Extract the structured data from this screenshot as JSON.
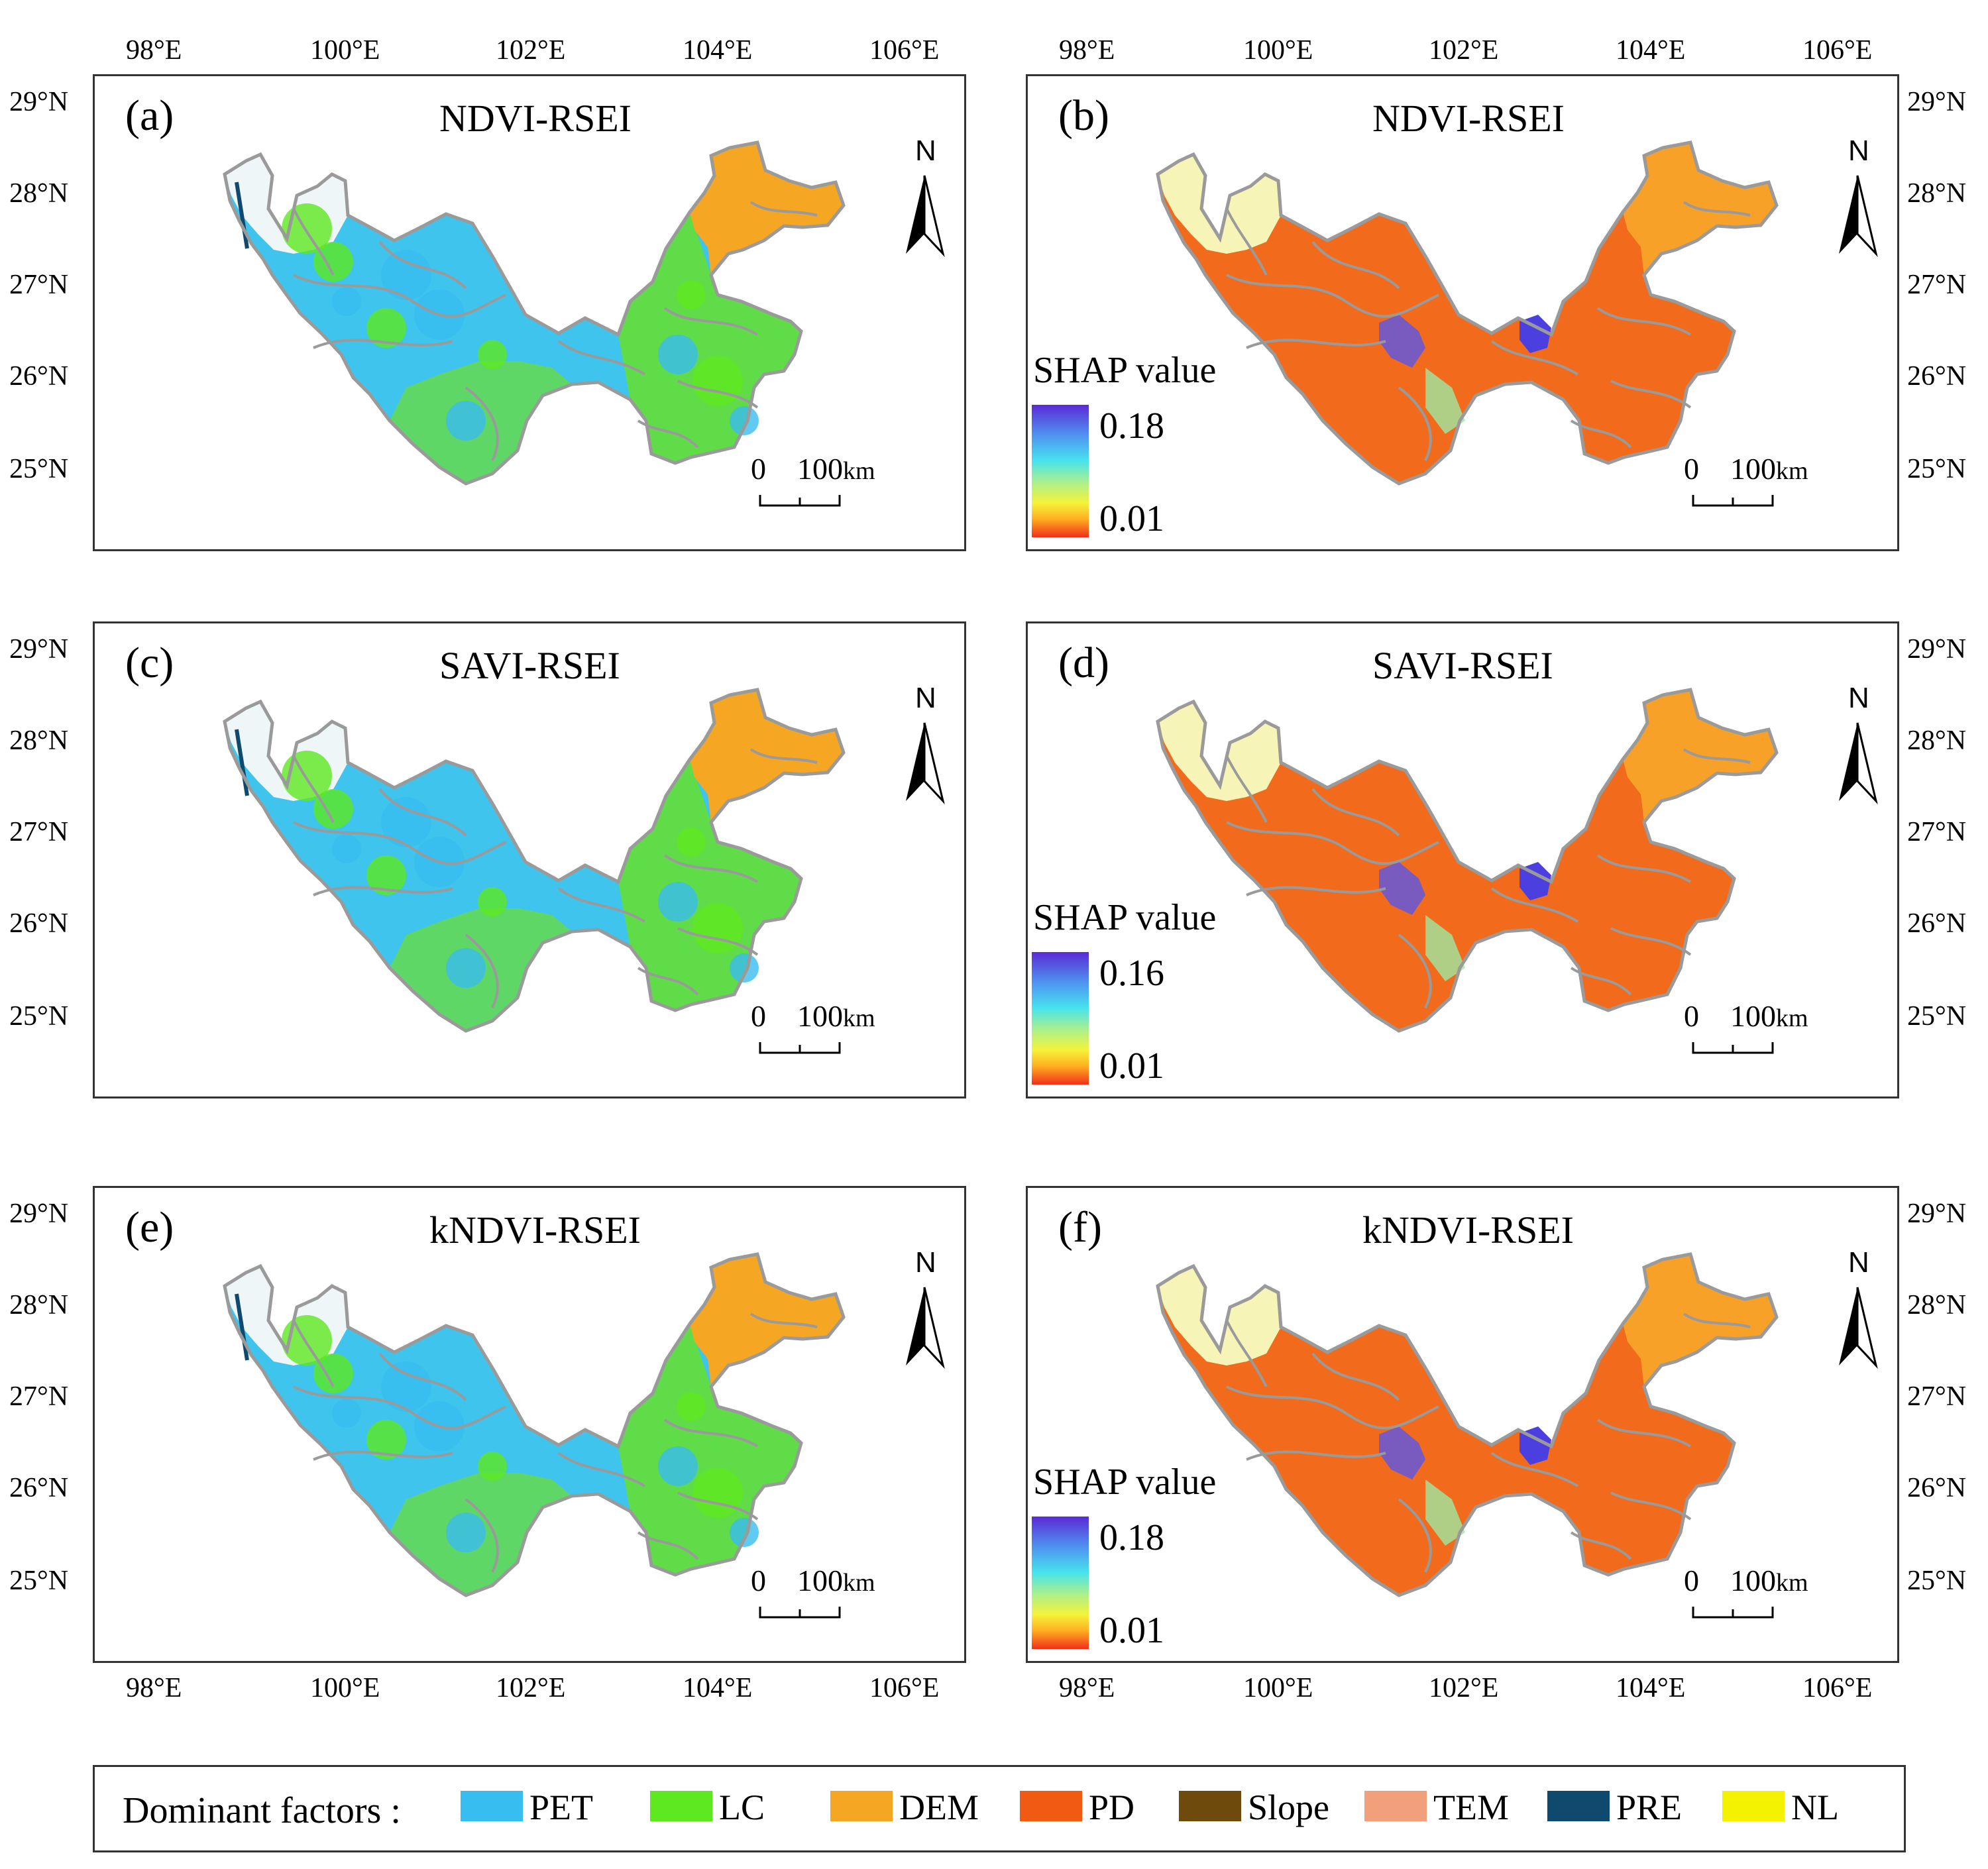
{
  "axes": {
    "lon_ticks": [
      "98°E",
      "100°E",
      "102°E",
      "104°E",
      "106°E"
    ],
    "lat_ticks": [
      "29°N",
      "28°N",
      "27°N",
      "26°N",
      "25°N"
    ]
  },
  "north_arrow_label": "N",
  "scale_bar": {
    "zero": "0",
    "distance": "100",
    "unit": "km"
  },
  "panels": [
    {
      "label": "(a)",
      "title": "NDVI-RSEI",
      "kind": "dominant-factor"
    },
    {
      "label": "(b)",
      "title": "NDVI-RSEI",
      "kind": "shap",
      "shap_title": "SHAP value",
      "shap_max": "0.18",
      "shap_min": "0.01"
    },
    {
      "label": "(c)",
      "title": "SAVI-RSEI",
      "kind": "dominant-factor"
    },
    {
      "label": "(d)",
      "title": "SAVI-RSEI",
      "kind": "shap",
      "shap_title": "SHAP value",
      "shap_max": "0.16",
      "shap_min": "0.01"
    },
    {
      "label": "(e)",
      "title": "kNDVI-RSEI",
      "kind": "dominant-factor"
    },
    {
      "label": "(f)",
      "title": "kNDVI-RSEI",
      "kind": "shap",
      "shap_title": "SHAP value",
      "shap_max": "0.18",
      "shap_min": "0.01"
    }
  ],
  "legend": {
    "title": "Dominant factors :",
    "items": [
      {
        "label": "PET",
        "color": "#38bdf0"
      },
      {
        "label": "LC",
        "color": "#5ee81f"
      },
      {
        "label": "DEM",
        "color": "#f5a623"
      },
      {
        "label": "PD",
        "color": "#f05a12"
      },
      {
        "label": "Slope",
        "color": "#6e4a0c"
      },
      {
        "label": "TEM",
        "color": "#f2a07c"
      },
      {
        "label": "PRE",
        "color": "#0f4a6e"
      },
      {
        "label": "NL",
        "color": "#f5f200"
      }
    ]
  },
  "colors": {
    "region_boundary": "#9a9a9a",
    "shap_high": "#5a2ad6",
    "shap_low": "#f12f1a"
  }
}
